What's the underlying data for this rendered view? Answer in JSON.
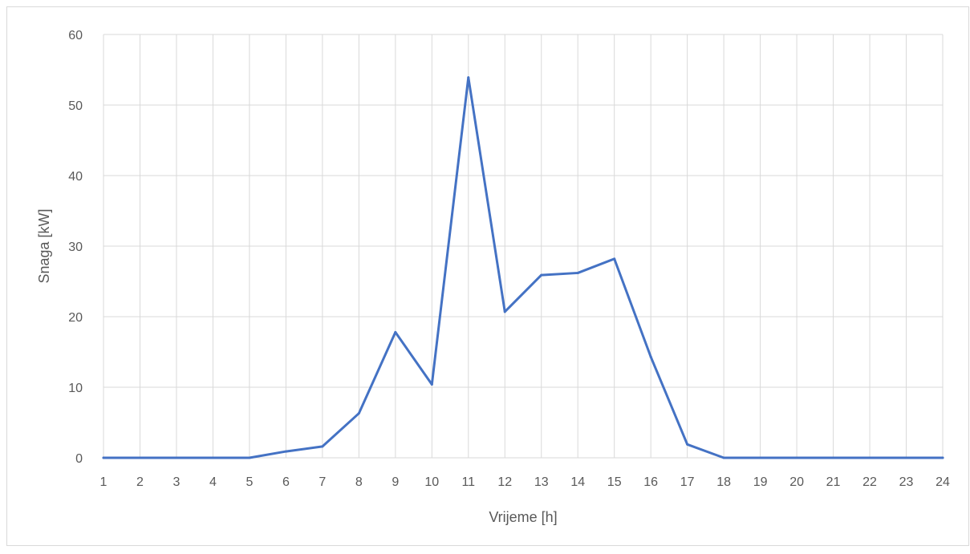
{
  "chart_data": {
    "type": "line",
    "title": "",
    "xlabel": "Vrijeme [h]",
    "ylabel": "Snaga [kW]",
    "categories": [
      "1",
      "2",
      "3",
      "4",
      "5",
      "6",
      "7",
      "8",
      "9",
      "10",
      "11",
      "12",
      "13",
      "14",
      "15",
      "16",
      "17",
      "18",
      "19",
      "20",
      "21",
      "22",
      "23",
      "24"
    ],
    "series": [
      {
        "values": [
          0,
          0,
          0,
          0,
          0,
          0.9,
          1.6,
          6.3,
          17.8,
          10.4,
          53.9,
          20.7,
          25.9,
          26.2,
          28.2,
          14.3,
          1.9,
          0,
          0,
          0,
          0,
          0,
          0,
          0
        ],
        "color": "#4472c4"
      }
    ],
    "ylim": [
      0,
      60
    ],
    "yticks": [
      0,
      10,
      20,
      30,
      40,
      50,
      60
    ],
    "grid": true,
    "legend": "none"
  }
}
